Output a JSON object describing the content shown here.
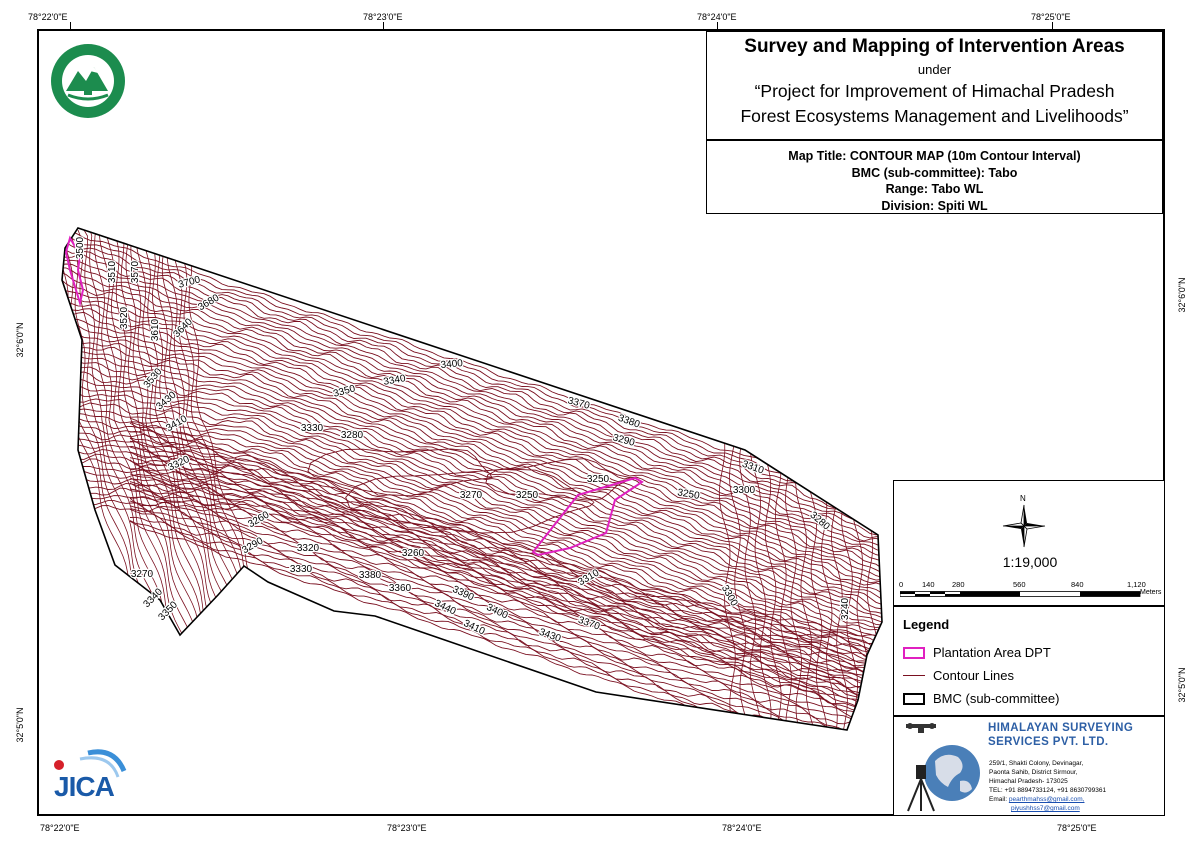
{
  "coords": {
    "top": [
      "78°22'0\"E",
      "78°23'0\"E",
      "78°24'0\"E",
      "78°25'0\"E"
    ],
    "bottom": [
      "78°22'0\"E",
      "78°23'0\"E",
      "78°24'0\"E",
      "78°25'0\"E"
    ],
    "left": [
      "32°6'0\"N",
      "32°5'0\"N"
    ],
    "right": [
      "32°6'0\"N",
      "32°5'0\"N"
    ]
  },
  "title_block": {
    "main": "Survey and Mapping of Intervention Areas",
    "under": "under",
    "project_line1": "“Project for Improvement of Himachal Pradesh",
    "project_line2": "Forest Ecosystems Management and Livelihoods”"
  },
  "info": {
    "map_title": "Map Title: CONTOUR MAP (10m Contour Interval)",
    "bmc": "BMC (sub-committee): Tabo",
    "range": "Range: Tabo WL",
    "division": "Division: Spiti WL"
  },
  "north": {
    "label": "N",
    "scale": "1:19,000"
  },
  "scalebar": {
    "ticks": [
      "0",
      "140",
      "280",
      "560",
      "840",
      "1,120"
    ],
    "unit": "Meters"
  },
  "legend": {
    "title": "Legend",
    "items": [
      {
        "label": "Plantation Area DPT",
        "color": "#e020c0"
      },
      {
        "label": "Contour Lines",
        "color": "#7a1020"
      },
      {
        "label": "BMC (sub-committee)",
        "color": "#000000"
      }
    ]
  },
  "contour_labels": [
    "3500",
    "3510",
    "3570",
    "3520",
    "3610",
    "3700",
    "3680",
    "3640",
    "3530",
    "3430",
    "3410",
    "3350",
    "3340",
    "3400",
    "3330",
    "3280",
    "3370",
    "3380",
    "3290",
    "3320",
    "3310",
    "3300",
    "3250",
    "3270",
    "3250",
    "3250",
    "3280",
    "3260",
    "3290",
    "3320",
    "3260",
    "3330",
    "3380",
    "3360",
    "3270",
    "3340",
    "3350",
    "3390",
    "3440",
    "3400",
    "3410",
    "3430",
    "3370",
    "3310",
    "3300",
    "3240"
  ],
  "company": {
    "name_line1": "HIMALAYAN SURVEYING",
    "name_line2": "SERVICES PVT. LTD.",
    "address": [
      "259/1, Shakti Colony, Devinagar,",
      "Paonta Sahib, District Sirmour,",
      "Himachal Pradesh- 173025",
      "TEL: +91 8894733124, +91 8630799361"
    ],
    "email_label": "Email:",
    "email1": "pearthmahss@gmail.com,",
    "email2": "piyushhss7@gmail.com"
  },
  "logo_jica": "JICA",
  "colors": {
    "contour": "#7a1020",
    "plantation": "#e020c0",
    "company": "#2d5fa5"
  }
}
